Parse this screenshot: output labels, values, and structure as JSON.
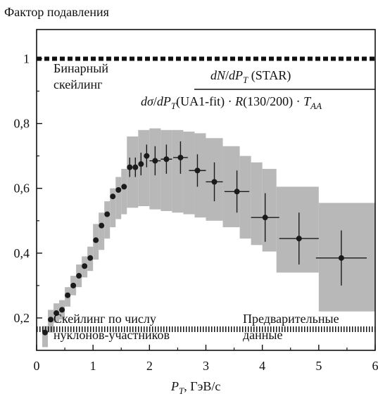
{
  "chart_data": {
    "type": "scatter",
    "title": "",
    "ylabel": "Фактор подавления",
    "xlabel_main": "P",
    "xlabel_sub": "T",
    "xlabel_unit": ", ГэВ/с",
    "xlim": [
      0,
      6
    ],
    "ylim": [
      0.1,
      1.09
    ],
    "x_ticks": [
      0,
      1,
      2,
      3,
      4,
      5,
      6
    ],
    "y_ticks": [
      {
        "value": 0.2,
        "label": "0,2"
      },
      {
        "value": 0.4,
        "label": "0,4"
      },
      {
        "value": 0.6,
        "label": "0,6"
      },
      {
        "value": 0.8,
        "label": "0,8"
      },
      {
        "value": 1.0,
        "label": "1"
      }
    ],
    "grid": false,
    "colors": {
      "band": "#b8b8b8",
      "point": "#1a1a1a",
      "frame": "#111111"
    },
    "reference_lines": [
      {
        "name": "binary",
        "y": 1.0,
        "style": "dashed"
      },
      {
        "name": "participant",
        "y": 0.165,
        "style": "dotted"
      }
    ],
    "band_segments": [
      [
        0.1,
        0.11,
        0.175
      ],
      [
        0.2,
        0.155,
        0.225
      ],
      [
        0.3,
        0.185,
        0.245
      ],
      [
        0.4,
        0.195,
        0.255
      ],
      [
        0.5,
        0.235,
        0.295
      ],
      [
        0.6,
        0.27,
        0.33
      ],
      [
        0.7,
        0.295,
        0.365
      ],
      [
        0.8,
        0.325,
        0.39
      ],
      [
        0.9,
        0.345,
        0.42
      ],
      [
        1.0,
        0.38,
        0.49
      ],
      [
        1.1,
        0.41,
        0.525
      ],
      [
        1.2,
        0.445,
        0.56
      ],
      [
        1.3,
        0.48,
        0.6
      ],
      [
        1.4,
        0.505,
        0.635
      ],
      [
        1.5,
        0.52,
        0.66
      ],
      [
        1.6,
        0.54,
        0.76
      ],
      [
        1.8,
        0.545,
        0.78
      ],
      [
        2.0,
        0.535,
        0.785
      ],
      [
        2.2,
        0.53,
        0.78
      ],
      [
        2.4,
        0.525,
        0.78
      ],
      [
        2.6,
        0.52,
        0.775
      ],
      [
        2.8,
        0.51,
        0.77
      ],
      [
        3.0,
        0.5,
        0.755
      ],
      [
        3.3,
        0.48,
        0.73
      ],
      [
        3.6,
        0.445,
        0.7
      ],
      [
        3.8,
        0.425,
        0.68
      ],
      [
        4.0,
        0.405,
        0.66
      ],
      [
        4.25,
        0.34,
        0.605
      ],
      [
        5.0,
        0.22,
        0.555
      ],
      [
        6.0,
        0.22,
        0.555
      ]
    ],
    "series": [
      {
        "points": [
          {
            "x": 0.15,
            "y": 0.155
          },
          {
            "x": 0.25,
            "y": 0.195
          },
          {
            "x": 0.35,
            "y": 0.215
          },
          {
            "x": 0.45,
            "y": 0.225
          },
          {
            "x": 0.55,
            "y": 0.27
          },
          {
            "x": 0.65,
            "y": 0.3
          },
          {
            "x": 0.75,
            "y": 0.33
          },
          {
            "x": 0.85,
            "y": 0.36
          },
          {
            "x": 0.95,
            "y": 0.385
          },
          {
            "x": 1.05,
            "y": 0.44
          },
          {
            "x": 1.15,
            "y": 0.485
          },
          {
            "x": 1.25,
            "y": 0.52
          },
          {
            "x": 1.35,
            "y": 0.575
          },
          {
            "x": 1.45,
            "y": 0.595
          },
          {
            "x": 1.55,
            "y": 0.605
          },
          {
            "x": 1.65,
            "y": 0.665,
            "yerr": 0.03
          },
          {
            "x": 1.75,
            "y": 0.665,
            "yerr": 0.03
          },
          {
            "x": 1.85,
            "y": 0.675,
            "yerr": 0.035
          },
          {
            "x": 1.95,
            "y": 0.7,
            "yerr": 0.035,
            "xerr": 0.05
          },
          {
            "x": 2.1,
            "y": 0.685,
            "yerr": 0.045,
            "xerr": 0.1
          },
          {
            "x": 2.3,
            "y": 0.69,
            "yerr": 0.045,
            "xerr": 0.1
          },
          {
            "x": 2.55,
            "y": 0.695,
            "yerr": 0.05,
            "xerr": 0.13
          },
          {
            "x": 2.85,
            "y": 0.655,
            "yerr": 0.05,
            "xerr": 0.15
          },
          {
            "x": 3.15,
            "y": 0.62,
            "yerr": 0.06,
            "xerr": 0.15
          },
          {
            "x": 3.55,
            "y": 0.59,
            "yerr": 0.065,
            "xerr": 0.22
          },
          {
            "x": 4.05,
            "y": 0.51,
            "yerr": 0.075,
            "xerr": 0.25
          },
          {
            "x": 4.65,
            "y": 0.445,
            "yerr": 0.08,
            "xerr": 0.35
          },
          {
            "x": 5.4,
            "y": 0.385,
            "yerr": 0.085,
            "xerr": 0.45
          }
        ]
      }
    ],
    "annotations": {
      "binary_line1": "Бинарный",
      "binary_line2": "скейлинг",
      "participant_line1": "Скейлинг по числу",
      "participant_line2": "нуклонов-участников",
      "prelim_line1": "Предварительные",
      "prelim_line2": "данные",
      "star_label": {
        "d1": "dN",
        "slash": "/",
        "d2": "dP",
        "sub": "T",
        "rest": " (STAR)"
      },
      "ua1_label": {
        "d1": "dσ",
        "slash": "/",
        "d2": "dP",
        "sub1": "T",
        "mid": "(UA1-fit) · ",
        "r": "R",
        "ratio": "(130/200) · ",
        "t": "T",
        "sub2": "AA"
      }
    }
  }
}
